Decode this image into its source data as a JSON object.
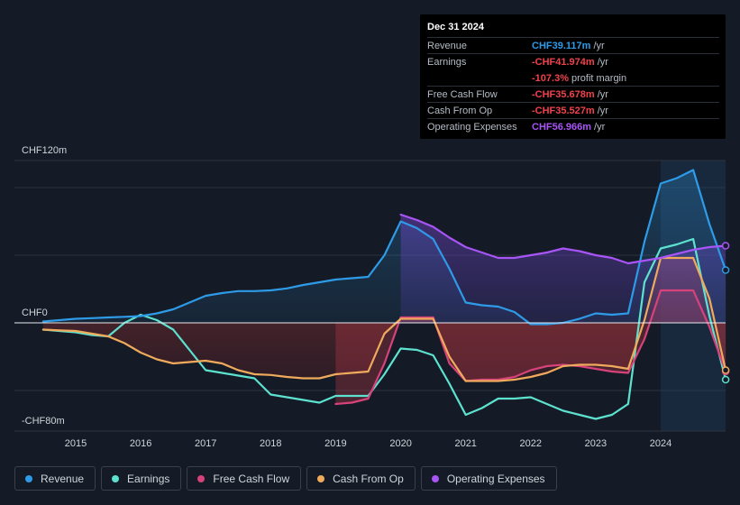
{
  "tooltip": {
    "date": "Dec 31 2024",
    "rows": [
      {
        "label": "Revenue",
        "value": "CHF39.117m",
        "unit": "/yr",
        "color": "#2e9be8"
      },
      {
        "label": "Earnings",
        "value": "-CHF41.974m",
        "unit": "/yr",
        "color": "#f0424b"
      },
      {
        "label": "",
        "value": "-107.3%",
        "unit": "profit margin",
        "color": "#f0424b"
      },
      {
        "label": "Free Cash Flow",
        "value": "-CHF35.678m",
        "unit": "/yr",
        "color": "#f0424b"
      },
      {
        "label": "Cash From Op",
        "value": "-CHF35.527m",
        "unit": "/yr",
        "color": "#f0424b"
      },
      {
        "label": "Operating Expenses",
        "value": "CHF56.966m",
        "unit": "/yr",
        "color": "#a855f7"
      }
    ]
  },
  "legend": [
    {
      "label": "Revenue",
      "color": "#2e9be8"
    },
    {
      "label": "Earnings",
      "color": "#5de2cf"
    },
    {
      "label": "Free Cash Flow",
      "color": "#d6427a"
    },
    {
      "label": "Cash From Op",
      "color": "#efaa5c"
    },
    {
      "label": "Operating Expenses",
      "color": "#a855f7"
    }
  ],
  "chart_data": {
    "type": "line",
    "title": "",
    "currency": "CHF",
    "y_axis_labels": [
      "CHF120m",
      "CHF0",
      "-CHF80m"
    ],
    "ylim": [
      -80,
      120
    ],
    "xlim": [
      2014.5,
      2025.0
    ],
    "x_ticks": [
      "2015",
      "2016",
      "2017",
      "2018",
      "2019",
      "2020",
      "2021",
      "2022",
      "2023",
      "2024"
    ],
    "series": [
      {
        "name": "Revenue",
        "color": "#2e9be8",
        "x": [
          2014.5,
          2014.75,
          2015,
          2015.25,
          2015.5,
          2015.75,
          2016,
          2016.25,
          2016.5,
          2016.75,
          2017,
          2017.25,
          2017.5,
          2017.75,
          2018,
          2018.25,
          2018.5,
          2018.75,
          2019,
          2019.25,
          2019.5,
          2019.75,
          2020,
          2020.25,
          2020.5,
          2020.75,
          2021,
          2021.25,
          2021.5,
          2021.75,
          2022,
          2022.25,
          2022.5,
          2022.75,
          2023,
          2023.25,
          2023.5,
          2023.75,
          2024,
          2024.25,
          2024.5,
          2024.75,
          2025.0
        ],
        "y": [
          1,
          2,
          3,
          3.5,
          4,
          4.5,
          5,
          7,
          10,
          15,
          20,
          22,
          23.5,
          23.5,
          24,
          25.5,
          28,
          30,
          32,
          33,
          34,
          50,
          75,
          70,
          62,
          40,
          15,
          13,
          12,
          8,
          -1,
          -1,
          0,
          3,
          7,
          6,
          7,
          60,
          103,
          107,
          113,
          73,
          39
        ]
      },
      {
        "name": "Earnings",
        "color": "#5de2cf",
        "x": [
          2014.5,
          2014.75,
          2015,
          2015.25,
          2015.5,
          2015.75,
          2016,
          2016.25,
          2016.5,
          2016.75,
          2017,
          2017.25,
          2017.5,
          2017.75,
          2018,
          2018.25,
          2018.5,
          2018.75,
          2019,
          2019.25,
          2019.5,
          2019.75,
          2020,
          2020.25,
          2020.5,
          2020.75,
          2021,
          2021.25,
          2021.5,
          2021.75,
          2022,
          2022.25,
          2022.5,
          2022.75,
          2023,
          2023.25,
          2023.5,
          2023.75,
          2024,
          2024.25,
          2024.5,
          2024.75,
          2025.0
        ],
        "y": [
          -5,
          -6,
          -7,
          -9,
          -10,
          0,
          6,
          2,
          -5,
          -20,
          -35,
          -37,
          -39,
          -41,
          -53,
          -55,
          -57,
          -59,
          -54,
          -54,
          -54,
          -38,
          -19,
          -20,
          -24,
          -45,
          -68,
          -63,
          -56,
          -56,
          -55,
          -60,
          -65,
          -68,
          -71,
          -68,
          -60,
          30,
          55,
          58,
          62,
          5,
          -42
        ]
      },
      {
        "name": "Free Cash Flow",
        "color": "#d6427a",
        "x": [
          2019,
          2019.25,
          2019.5,
          2019.75,
          2020,
          2020.25,
          2020.5,
          2020.75,
          2021,
          2021.25,
          2021.5,
          2021.75,
          2022,
          2022.25,
          2022.5,
          2022.75,
          2023,
          2023.25,
          2023.5,
          2023.75,
          2024,
          2024.25,
          2024.5,
          2024.75,
          2025.0
        ],
        "y": [
          -60,
          -59,
          -56,
          -30,
          4,
          4,
          4,
          -30,
          -43,
          -42,
          -42,
          -40,
          -35,
          -32,
          -31,
          -32,
          -34,
          -36,
          -37,
          -12,
          24,
          24,
          24,
          -3,
          -36
        ]
      },
      {
        "name": "Cash From Op",
        "color": "#efaa5c",
        "x": [
          2014.5,
          2014.75,
          2015,
          2015.25,
          2015.5,
          2015.75,
          2016,
          2016.25,
          2016.5,
          2016.75,
          2017,
          2017.25,
          2017.5,
          2017.75,
          2018,
          2018.25,
          2018.5,
          2018.75,
          2019,
          2019.25,
          2019.5,
          2019.75,
          2020,
          2020.25,
          2020.5,
          2020.75,
          2021,
          2021.25,
          2021.5,
          2021.75,
          2022,
          2022.25,
          2022.5,
          2022.75,
          2023,
          2023.25,
          2023.5,
          2023.75,
          2024,
          2024.25,
          2024.5,
          2024.75,
          2025.0
        ],
        "y": [
          -5,
          -5.5,
          -6,
          -8,
          -10,
          -15,
          -22,
          -27,
          -30,
          -29,
          -28,
          -30,
          -35,
          -38,
          -38.5,
          -40,
          -41,
          -41,
          -38,
          -37,
          -36,
          -8,
          3,
          3,
          3,
          -25,
          -43,
          -43,
          -43,
          -42,
          -40,
          -37,
          -32,
          -31,
          -31,
          -32,
          -34,
          2,
          48,
          48,
          48,
          18,
          -35
        ]
      },
      {
        "name": "Operating Expenses",
        "color": "#a855f7",
        "x": [
          2020,
          2020.25,
          2020.5,
          2020.75,
          2021,
          2021.25,
          2021.5,
          2021.75,
          2022,
          2022.25,
          2022.5,
          2022.75,
          2023,
          2023.25,
          2023.5,
          2023.75,
          2024,
          2024.25,
          2024.5,
          2024.75,
          2025.0
        ],
        "y": [
          80,
          76,
          71,
          63,
          56,
          52,
          48,
          48,
          50,
          52,
          55,
          53,
          50,
          48,
          44,
          46,
          48,
          51,
          54,
          56,
          57
        ]
      }
    ]
  }
}
